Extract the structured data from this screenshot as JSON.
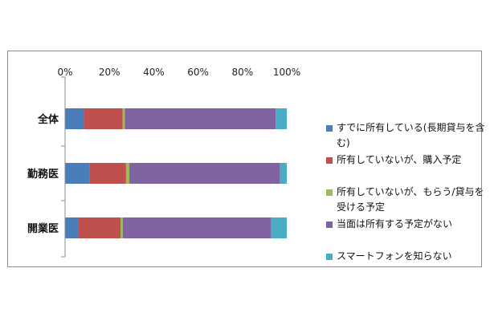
{
  "chart_data": {
    "type": "bar",
    "orientation": "horizontal",
    "stacked": true,
    "title": "",
    "xlabel": "",
    "ylabel": "",
    "xlim": [
      0,
      100
    ],
    "x_ticks": [
      "0%",
      "20%",
      "40%",
      "60%",
      "80%",
      "100%"
    ],
    "categories": [
      "全体",
      "勤務医",
      "開業医"
    ],
    "series": [
      {
        "name": "すでに所有している(長期貸与を含む)",
        "color": "#4a7ebb",
        "values": [
          8.5,
          11,
          6
        ]
      },
      {
        "name": "所有していないが、購入予定",
        "color": "#c0504d",
        "values": [
          17.5,
          16.5,
          19
        ]
      },
      {
        "name": "所有していないが、もらう/貸与を受ける予定",
        "color": "#9bbb59",
        "values": [
          1,
          1.5,
          1
        ]
      },
      {
        "name": "当面は所有する予定がない",
        "color": "#8064a2",
        "values": [
          68,
          68,
          67
        ]
      },
      {
        "name": "スマートフォンを知らない",
        "color": "#4bacc6",
        "values": [
          5,
          3,
          7
        ]
      }
    ],
    "legend_position": "right",
    "grid": false
  }
}
